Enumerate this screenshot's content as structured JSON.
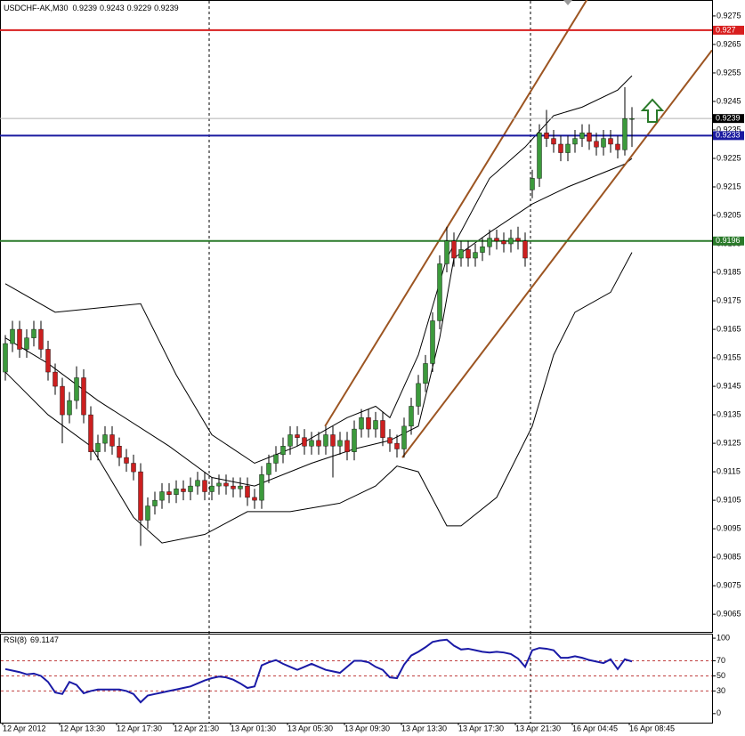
{
  "chart_data": [
    {
      "type": "candlestick",
      "title": "USDCHF-AK,M30",
      "categories": [
        "12 Apr 2012",
        null,
        null,
        null,
        null,
        null,
        null,
        null,
        "12 Apr 13:30",
        null,
        null,
        null,
        null,
        null,
        null,
        null,
        "12 Apr 17:30",
        null,
        null,
        null,
        null,
        null,
        null,
        null,
        "12 Apr 21:30",
        null,
        null,
        null,
        null,
        null,
        null,
        null,
        "13 Apr 01:30",
        null,
        null,
        null,
        null,
        null,
        null,
        null,
        "13 Apr 05:30",
        null,
        null,
        null,
        null,
        null,
        null,
        null,
        "13 Apr 09:30",
        null,
        null,
        null,
        null,
        null,
        null,
        null,
        "13 Apr 13:30",
        null,
        null,
        null,
        null,
        null,
        null,
        null,
        "13 Apr 17:30",
        null,
        null,
        null,
        null,
        null,
        null,
        null,
        "13 Apr 21:30",
        null,
        null,
        null,
        null,
        null,
        null,
        null,
        "16 Apr 04:45",
        null,
        null,
        null,
        null,
        null,
        null,
        null,
        "16 Apr 08:45"
      ],
      "open": [
        0.915,
        0.916,
        0.9165,
        0.9158,
        0.9162,
        0.9165,
        0.9158,
        0.915,
        0.9145,
        0.9135,
        0.914,
        0.9148,
        0.9135,
        0.9122,
        0.9125,
        0.9128,
        0.9124,
        0.912,
        0.9118,
        0.9115,
        0.9098,
        0.9103,
        0.9105,
        0.9108,
        0.9107,
        0.9109,
        0.9108,
        0.911,
        0.9112,
        0.9108,
        0.911,
        0.9111,
        0.911,
        0.9109,
        0.911,
        0.9106,
        0.9105,
        0.9114,
        0.9118,
        0.9121,
        0.9124,
        0.9128,
        0.9127,
        0.9124,
        0.9126,
        0.9124,
        0.9128,
        0.9124,
        0.9126,
        0.9122,
        0.913,
        0.9134,
        0.913,
        0.9133,
        0.9127,
        0.9125,
        0.9123,
        0.9131,
        0.9138,
        0.9146,
        0.9153,
        0.9168,
        0.9188,
        0.9196,
        0.919,
        0.9193,
        0.919,
        0.9192,
        0.9194,
        0.9197,
        0.9196,
        0.9195,
        0.9197,
        0.9196,
        0.9214,
        0.9218,
        0.9234,
        0.9232,
        0.923,
        0.9227,
        0.923,
        0.9232,
        0.9234,
        0.9231,
        0.9229,
        0.9232,
        0.923,
        0.9228,
        0.9239
      ],
      "high": [
        0.9163,
        0.9168,
        0.9168,
        0.9165,
        0.9168,
        0.9168,
        0.9161,
        0.9153,
        0.9148,
        0.9143,
        0.9152,
        0.9151,
        0.9138,
        0.9128,
        0.9131,
        0.9131,
        0.9127,
        0.9123,
        0.9121,
        0.9118,
        0.9106,
        0.9108,
        0.9111,
        0.9111,
        0.9112,
        0.9112,
        0.9113,
        0.9115,
        0.9115,
        0.9113,
        0.9114,
        0.9114,
        0.9113,
        0.9113,
        0.9113,
        0.9109,
        0.9117,
        0.9121,
        0.9124,
        0.9127,
        0.9131,
        0.9131,
        0.913,
        0.9129,
        0.9129,
        0.9131,
        0.9131,
        0.9129,
        0.9129,
        0.9133,
        0.9137,
        0.9137,
        0.9136,
        0.9136,
        0.913,
        0.9128,
        0.9134,
        0.9141,
        0.9149,
        0.9156,
        0.9171,
        0.9191,
        0.9201,
        0.9199,
        0.9196,
        0.9196,
        0.9195,
        0.9197,
        0.92,
        0.92,
        0.9199,
        0.92,
        0.9201,
        0.9199,
        0.9221,
        0.9237,
        0.9242,
        0.9235,
        0.9233,
        0.9233,
        0.9235,
        0.9237,
        0.9237,
        0.9234,
        0.9235,
        0.9235,
        0.9233,
        0.925,
        0.9243
      ],
      "low": [
        0.9147,
        0.9157,
        0.9155,
        0.9155,
        0.9159,
        0.9155,
        0.9147,
        0.9142,
        0.9125,
        0.9132,
        0.9137,
        0.9132,
        0.9119,
        0.9119,
        0.9122,
        0.9121,
        0.9117,
        0.9115,
        0.9112,
        0.9089,
        0.9095,
        0.91,
        0.9102,
        0.9104,
        0.9104,
        0.9105,
        0.9105,
        0.9107,
        0.9105,
        0.9105,
        0.9107,
        0.9107,
        0.9106,
        0.9106,
        0.9103,
        0.9102,
        0.9102,
        0.9111,
        0.9115,
        0.9118,
        0.9121,
        0.9124,
        0.9121,
        0.9121,
        0.9121,
        0.9121,
        0.9113,
        0.9121,
        0.9119,
        0.9119,
        0.9127,
        0.9127,
        0.9127,
        0.9124,
        0.9122,
        0.912,
        0.912,
        0.9128,
        0.9135,
        0.9143,
        0.915,
        0.9165,
        0.9185,
        0.9187,
        0.9187,
        0.9187,
        0.9187,
        0.9189,
        0.9191,
        0.9193,
        0.9192,
        0.9192,
        0.9193,
        0.9187,
        0.9211,
        0.9215,
        0.9229,
        0.9227,
        0.9224,
        0.9224,
        0.9227,
        0.9229,
        0.9228,
        0.9226,
        0.9226,
        0.9227,
        0.9225,
        0.9226,
        0.9229
      ],
      "close": [
        0.916,
        0.9165,
        0.9158,
        0.9162,
        0.9165,
        0.9158,
        0.915,
        0.9145,
        0.9135,
        0.914,
        0.9148,
        0.9135,
        0.9122,
        0.9125,
        0.9128,
        0.9124,
        0.912,
        0.9118,
        0.9115,
        0.9098,
        0.9103,
        0.9105,
        0.9108,
        0.9107,
        0.9109,
        0.9108,
        0.911,
        0.9112,
        0.9108,
        0.911,
        0.9111,
        0.911,
        0.9109,
        0.911,
        0.9106,
        0.9105,
        0.9114,
        0.9118,
        0.9121,
        0.9124,
        0.9128,
        0.9127,
        0.9124,
        0.9126,
        0.9124,
        0.9128,
        0.9124,
        0.9126,
        0.9122,
        0.913,
        0.9134,
        0.913,
        0.9133,
        0.9127,
        0.9125,
        0.9123,
        0.9131,
        0.9138,
        0.9146,
        0.9153,
        0.9168,
        0.9188,
        0.9196,
        0.919,
        0.9193,
        0.919,
        0.9192,
        0.9194,
        0.9197,
        0.9196,
        0.9195,
        0.9197,
        0.9196,
        0.919,
        0.9218,
        0.9234,
        0.9232,
        0.923,
        0.9227,
        0.923,
        0.9232,
        0.9234,
        0.9231,
        0.9229,
        0.9232,
        0.923,
        0.9228,
        0.9239,
        0.9239
      ],
      "up_color": "#3c9a3c",
      "down_color": "#cc1f1f",
      "ylim": [
        0.90588,
        0.92806
      ],
      "yticks": [
        0.9275,
        0.9265,
        0.9255,
        0.9245,
        0.9235,
        0.9225,
        0.9215,
        0.9205,
        0.9195,
        0.9185,
        0.9175,
        0.9165,
        0.9155,
        0.9145,
        0.9135,
        0.9125,
        0.9115,
        0.9105,
        0.9095,
        0.9085,
        0.9075,
        0.9065
      ],
      "bands": [
        {
          "color": "#000000",
          "x": [
            0,
            7,
            19,
            24,
            29,
            35,
            41,
            48,
            52,
            54,
            58,
            62,
            68,
            73,
            77,
            81,
            86,
            88
          ],
          "values": [
            0.9181,
            0.9171,
            0.9174,
            0.9149,
            0.9128,
            0.9118,
            0.9124,
            0.9134,
            0.9138,
            0.9134,
            0.9156,
            0.919,
            0.9218,
            0.9229,
            0.924,
            0.9243,
            0.9249,
            0.9254
          ]
        },
        {
          "color": "#000000",
          "x": [
            0,
            6,
            13,
            23,
            29,
            35,
            43,
            49,
            54,
            58,
            61,
            63,
            68,
            74,
            79,
            87,
            88
          ],
          "values": [
            0.9162,
            0.9153,
            0.914,
            0.9124,
            0.9113,
            0.911,
            0.9118,
            0.9123,
            0.9126,
            0.9131,
            0.9162,
            0.919,
            0.9199,
            0.9209,
            0.9215,
            0.9223,
            0.9225
          ]
        },
        {
          "color": "#000000",
          "x": [
            0,
            6,
            12,
            18,
            22,
            28,
            34,
            40,
            47,
            52,
            55,
            58,
            62,
            64,
            69,
            74,
            77,
            80,
            85,
            88
          ],
          "values": [
            0.915,
            0.9135,
            0.9124,
            0.9099,
            0.909,
            0.9093,
            0.9101,
            0.9101,
            0.9104,
            0.911,
            0.9117,
            0.9115,
            0.9096,
            0.9096,
            0.9106,
            0.9131,
            0.9156,
            0.9171,
            0.9178,
            0.9192
          ]
        }
      ],
      "trendlines": [
        {
          "color": "#9c5522",
          "x": [
            44.9,
            81.75
          ],
          "values": [
            0.9131,
            0.9281
          ]
        },
        {
          "color": "#9c5522",
          "x": [
            55.75,
            99.25
          ],
          "values": [
            0.912,
            0.9263
          ]
        }
      ],
      "hlines": [
        {
          "value": 0.927,
          "color": "#d81e1e",
          "label_fill": "#d81e1e"
        },
        {
          "value": 0.9239,
          "color": "#b0b0b0",
          "label_fill": "#000000"
        },
        {
          "value": 0.9233,
          "color": "#1a1aa0",
          "label_fill": "#1a1aa0"
        },
        {
          "value": 0.9196,
          "color": "#2a7a2a",
          "label_fill": "#2a7a2a"
        }
      ]
    },
    {
      "type": "line",
      "title": "RSI(8)",
      "color": "#1a1aa6",
      "values": [
        59,
        57,
        55,
        52,
        53,
        50,
        42,
        28,
        26,
        42,
        38,
        27,
        30,
        32,
        32,
        32,
        32,
        30,
        26,
        15,
        24,
        26,
        28,
        30,
        32,
        34,
        36,
        40,
        44,
        47,
        49,
        48,
        45,
        40,
        34,
        36,
        64,
        68,
        71,
        66,
        62,
        58,
        62,
        66,
        62,
        58,
        56,
        54,
        62,
        70,
        70,
        68,
        62,
        58,
        48,
        47,
        65,
        77,
        82,
        88,
        95,
        97,
        98,
        90,
        85,
        86,
        84,
        82,
        81,
        82,
        81,
        79,
        73,
        62,
        84,
        87,
        86,
        84,
        74,
        74,
        76,
        74,
        71,
        69,
        67,
        72,
        59,
        72,
        69.1147
      ],
      "ylim": [
        -12,
        106
      ],
      "yticks": [
        100,
        70,
        50,
        30,
        0
      ],
      "levels": [
        70,
        50,
        30
      ],
      "level_color": "#c04040"
    }
  ]
}
